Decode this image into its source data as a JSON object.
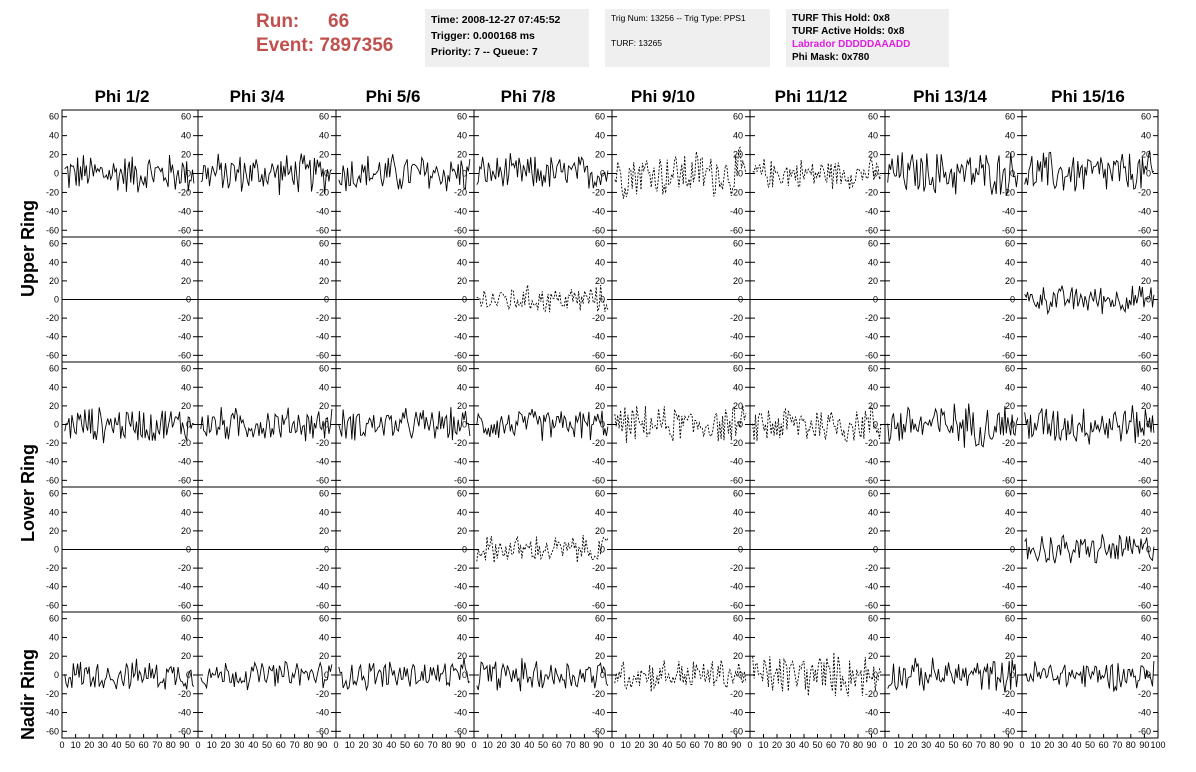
{
  "header": {
    "run_label": "Run:",
    "run_value": "66",
    "event_label": "Event:",
    "event_value": "7897356"
  },
  "info_box_1": {
    "time": "Time: 2008-12-27 07:45:52",
    "trigger": "Trigger: 0.000168 ms",
    "priority": "Priority: 7 -- Queue: 7"
  },
  "info_box_2": {
    "trig": "Trig Num: 13256 -- Trig Type: PPS1",
    "turf": "TURF: 13265"
  },
  "info_box_3": {
    "this_hold": "TURF This Hold: 0x8",
    "active_holds": "TURF Active Holds: 0x8",
    "labrador": "Labrador DDDDDAAADD",
    "phi_mask": "Phi Mask: 0x780"
  },
  "columns": [
    "Phi 1/2",
    "Phi 3/4",
    "Phi 5/6",
    "Phi 7/8",
    "Phi 9/10",
    "Phi 11/12",
    "Phi 13/14",
    "Phi 15/16"
  ],
  "ring_labels": [
    "Upper Ring",
    "Lower Ring",
    "Nadir Ring"
  ],
  "colors": {
    "run_text": "#c0504d",
    "labrador": "#e020e0",
    "trace": "#000000",
    "info_bg": "#efefef"
  },
  "chart_data": {
    "type": "line",
    "xlim": [
      0,
      100
    ],
    "ylim": [
      -65,
      65
    ],
    "y_ticks": [
      -60,
      -40,
      -20,
      0,
      20,
      40,
      60
    ],
    "x_ticks": [
      0,
      10,
      20,
      30,
      40,
      50,
      60,
      70,
      80,
      90,
      100
    ],
    "x_tick_labels": [
      "0",
      "10",
      "20",
      "30",
      "40",
      "50",
      "60",
      "70",
      "80",
      "90",
      "100"
    ],
    "grid": false,
    "rows": [
      {
        "ring": "Upper Ring",
        "styles": [
          "solid",
          "solid",
          "solid",
          "solid",
          "dashed",
          "dashed",
          "solid",
          "solid"
        ],
        "amplitude": [
          20,
          20,
          20,
          18,
          24,
          15,
          22,
          22
        ]
      },
      {
        "ring": "Upper Ring",
        "styles": [
          "flat",
          "flat",
          "flat",
          "dashed",
          "flat",
          "flat",
          "flat",
          "solid"
        ],
        "amplitude": [
          0,
          0,
          0,
          14,
          0,
          0,
          0,
          14
        ]
      },
      {
        "ring": "Lower Ring",
        "styles": [
          "solid",
          "solid",
          "solid",
          "solid",
          "dashed",
          "dashed",
          "solid",
          "solid"
        ],
        "amplitude": [
          18,
          17,
          16,
          16,
          18,
          20,
          22,
          20
        ]
      },
      {
        "ring": "Lower Ring",
        "styles": [
          "flat",
          "flat",
          "flat",
          "dashed",
          "flat",
          "flat",
          "flat",
          "solid"
        ],
        "amplitude": [
          0,
          0,
          0,
          14,
          0,
          0,
          0,
          16
        ]
      },
      {
        "ring": "Nadir Ring",
        "styles": [
          "solid",
          "solid",
          "solid",
          "solid",
          "dashed",
          "dashed",
          "solid",
          "solid"
        ],
        "amplitude": [
          15,
          14,
          15,
          16,
          16,
          22,
          16,
          15
        ]
      }
    ]
  }
}
